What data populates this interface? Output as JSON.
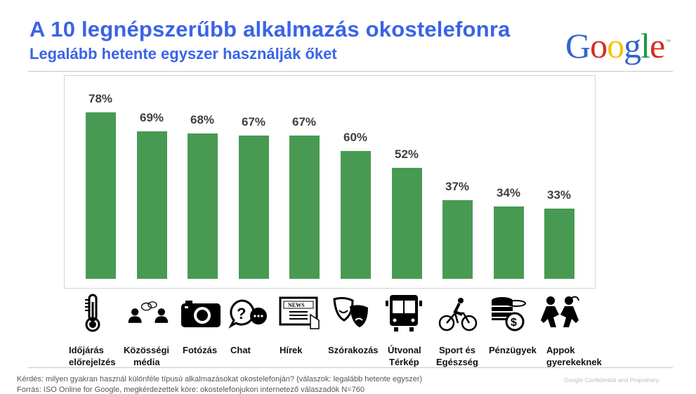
{
  "header": {
    "title": "A 10 legnépszerűbb alkalmazás okostelefonra",
    "subtitle": "Legalább hetente egyszer használják őket",
    "logo_letters": [
      {
        "ch": "G",
        "color": "#3366cc"
      },
      {
        "ch": "o",
        "color": "#d62d20"
      },
      {
        "ch": "o",
        "color": "#f4c20d"
      },
      {
        "ch": "g",
        "color": "#3366cc"
      },
      {
        "ch": "l",
        "color": "#199a48"
      },
      {
        "ch": "e",
        "color": "#d62d20"
      }
    ],
    "logo_tm": "™"
  },
  "colors": {
    "title": "#3a64e6",
    "bar": "#489a53",
    "value_label": "#3f3f3f"
  },
  "chart_data": {
    "type": "bar",
    "title": "A 10 legnépszerűbb alkalmazás okostelefonra",
    "subtitle": "Legalább hetente egyszer használják őket",
    "categories": [
      "Időjárás előrejelzés",
      "Közösségi média",
      "Fotózás",
      "Chat",
      "Hírek",
      "Szórakozás",
      "Útvonal Térkép",
      "Sport és Egészség",
      "Pénzügyek",
      "Appok gyerekeknek"
    ],
    "values": [
      78,
      69,
      68,
      67,
      67,
      60,
      52,
      37,
      34,
      33
    ],
    "value_labels": [
      "78%",
      "69%",
      "68%",
      "67%",
      "67%",
      "60%",
      "52%",
      "37%",
      "34%",
      "33%"
    ],
    "xlabel": "",
    "ylabel": "",
    "ylim": [
      0,
      100
    ],
    "grid": false,
    "legend": "none",
    "data_labels": true
  },
  "categories": [
    {
      "line1": "Időjárás",
      "line2": "előrejelzés",
      "icon": "thermometer-icon"
    },
    {
      "line1": "Közösségi",
      "line2": "média",
      "icon": "people-chatting-icon"
    },
    {
      "line1": "Fotózás",
      "line2": "",
      "icon": "camera-icon"
    },
    {
      "line1": "Chat",
      "line2": "",
      "icon": "chat-bubbles-icon"
    },
    {
      "line1": "Hírek",
      "line2": "",
      "icon": "newspaper-icon"
    },
    {
      "line1": "Szórakozás",
      "line2": "",
      "icon": "theater-masks-icon"
    },
    {
      "line1": "Útvonal",
      "line2": "Térkép",
      "icon": "bus-icon"
    },
    {
      "line1": "Sport és",
      "line2": "Egészség",
      "icon": "cyclist-icon"
    },
    {
      "line1": "Pénzügyek",
      "line2": "",
      "icon": "coins-icon"
    },
    {
      "line1": "Appok",
      "line2": "gyerekeknek",
      "icon": "kids-playing-icon"
    }
  ],
  "footer": {
    "question": "Kérdés: milyen gyakran használ különféle típusú alkalmazásokat okostelefonján? (válaszok: legalább hetente egyszer)",
    "source": "Forrás: ISO Online for Google, megkérdezettek köre: okostelefonjukon internetező válaszadók N=760",
    "confidential": "Google Confidential and Proprietary"
  }
}
